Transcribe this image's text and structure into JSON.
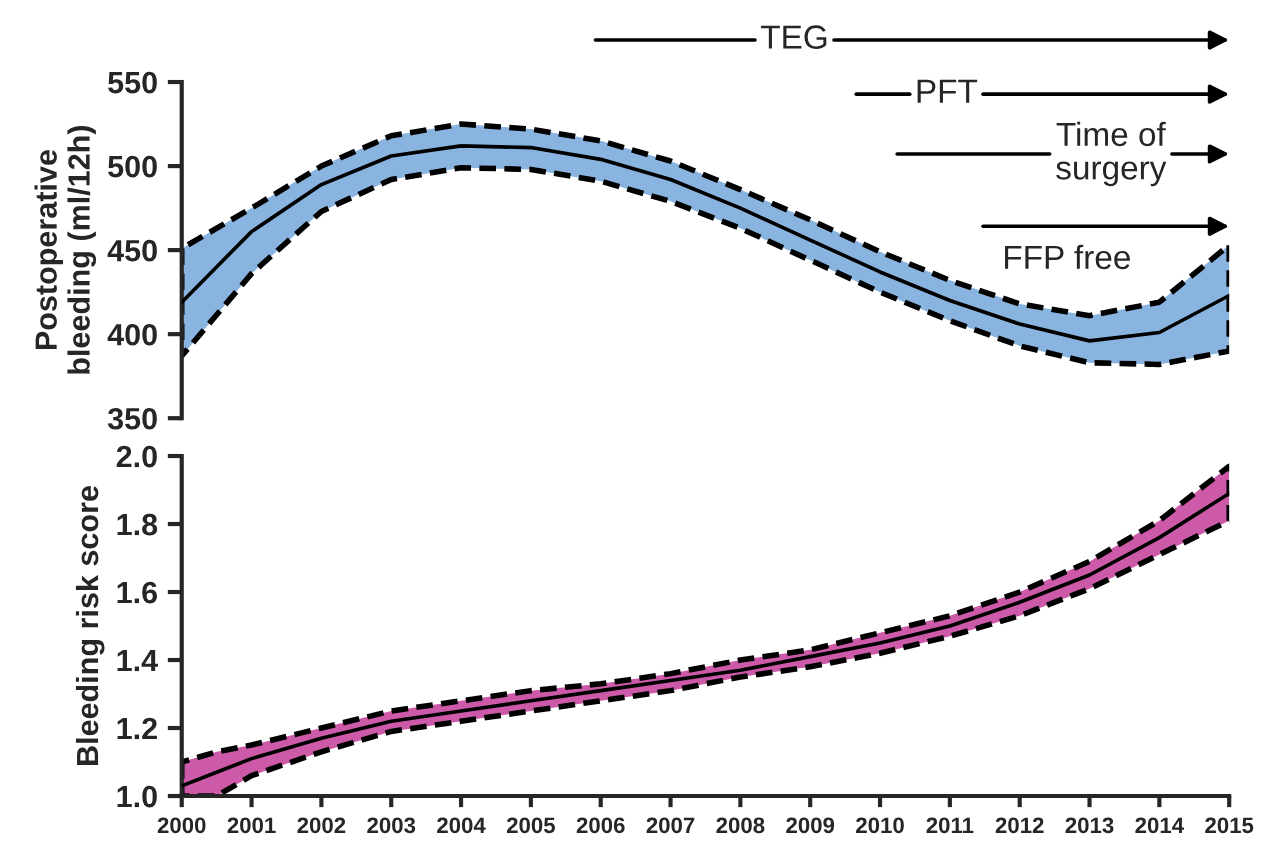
{
  "chart_data": [
    {
      "type": "line",
      "ylabel": "Postoperative\nbleeding (ml/12h)",
      "xlim": [
        2000,
        2015
      ],
      "ylim": [
        350,
        550
      ],
      "yticks": [
        350,
        400,
        450,
        500,
        550
      ],
      "tick_labels": "y",
      "grid": false,
      "x": [
        2000,
        2001,
        2002,
        2003,
        2004,
        2005,
        2006,
        2007,
        2008,
        2009,
        2010,
        2011,
        2012,
        2013,
        2014,
        2015
      ],
      "series": [
        {
          "color": "#000000",
          "colors": [
            "#8ab4e0",
            "#8ab4e0",
            "#8ab4e0",
            "#8ab4e0",
            "#8ab4e0",
            "#8ab4e0",
            "#8ab4e0",
            "#8ab4e0",
            "#8ab4e0",
            "#8ab4e0",
            "#8ab4e0",
            "#8ab4e0",
            "#8ab4e0",
            "#8ab4e0",
            "#8ab4e0",
            "#8ab4e0"
          ],
          "line_style": "solid",
          "values": [
            419,
            461,
            489,
            506,
            512,
            511,
            504,
            492,
            475,
            456,
            437,
            420,
            406,
            396,
            401,
            423
          ],
          "upper": [
            451,
            475,
            500,
            518,
            525,
            522,
            515,
            503,
            486,
            468,
            449,
            432,
            418,
            411,
            419,
            453
          ],
          "lower": [
            387,
            436,
            473,
            492,
            499,
            498,
            491,
            479,
            463,
            444,
            425,
            408,
            393,
            383,
            382,
            390
          ]
        }
      ],
      "annotations": [
        "TEG",
        "PFT",
        "Time of\nsurgery",
        "FFP free"
      ]
    },
    {
      "type": "line",
      "ylabel": "Bleeding risk score",
      "xlim": [
        2000,
        2015
      ],
      "ylim": [
        1.0,
        2.0
      ],
      "yticks": [
        {
          "value": 1.0,
          "label": "1.0"
        },
        1.2,
        1.4,
        1.6,
        1.8,
        {
          "value": 2.0,
          "label": "2.0"
        }
      ],
      "xticks": [
        2000,
        2001,
        2002,
        2003,
        2004,
        2005,
        2006,
        2007,
        2008,
        2009,
        2010,
        2011,
        2012,
        2013,
        2014,
        2015
      ],
      "grid": false,
      "x": [
        2000,
        2000.5,
        2001,
        2002,
        2003,
        2004,
        2005,
        2006,
        2007,
        2008,
        2009,
        2010,
        2011,
        2012,
        2013,
        2014,
        2015
      ],
      "series": [
        {
          "color": "#000000",
          "colors": [
            "#cc5aa8",
            "#cc5aa8",
            "#cc5aa8",
            "#cc5aa8",
            "#cc5aa8",
            "#cc5aa8",
            "#cc5aa8",
            "#cc5aa8",
            "#cc5aa8",
            "#cc5aa8",
            "#cc5aa8",
            "#cc5aa8",
            "#cc5aa8",
            "#cc5aa8",
            "#cc5aa8",
            "#cc5aa8",
            "#cc5aa8"
          ],
          "line_style": "solid",
          "values": [
            1.03,
            1.07,
            1.11,
            1.17,
            1.22,
            1.25,
            1.28,
            1.31,
            1.34,
            1.37,
            1.41,
            1.45,
            1.5,
            1.57,
            1.65,
            1.76,
            1.89
          ],
          "upper": [
            1.1,
            1.13,
            1.15,
            1.2,
            1.25,
            1.28,
            1.31,
            1.33,
            1.36,
            1.4,
            1.43,
            1.48,
            1.53,
            1.6,
            1.69,
            1.81,
            1.97
          ],
          "lower": [
            1.0,
            1.0,
            1.06,
            1.13,
            1.19,
            1.22,
            1.25,
            1.28,
            1.31,
            1.35,
            1.38,
            1.42,
            1.47,
            1.53,
            1.61,
            1.71,
            1.81
          ]
        }
      ]
    }
  ]
}
